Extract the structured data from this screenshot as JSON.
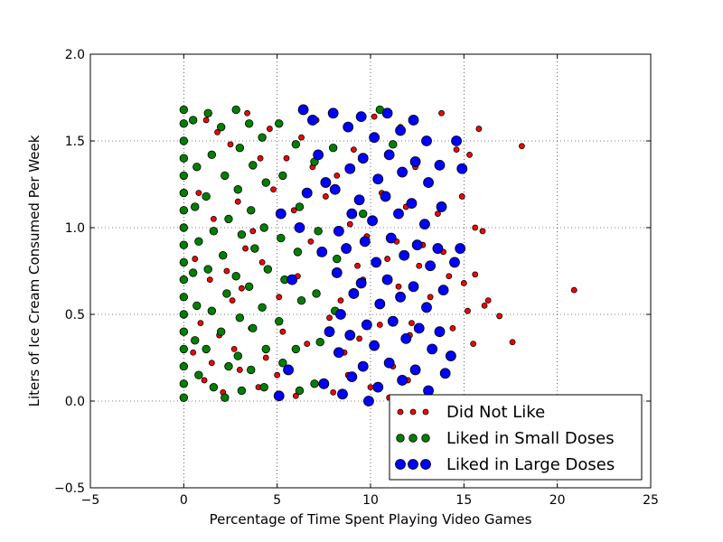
{
  "chart_data": {
    "type": "scatter",
    "title": "",
    "xlabel": "Percentage of Time Spent Playing Video Games",
    "ylabel": "Liters of Ice Cream Consumed Per Week",
    "xlim": [
      -5,
      25
    ],
    "ylim": [
      -0.5,
      2.0
    ],
    "x_ticks": [
      "−5",
      "0",
      "5",
      "10",
      "15",
      "20",
      "25"
    ],
    "y_ticks": [
      "−0.5",
      "0.0",
      "0.5",
      "1.0",
      "1.5",
      "2.0"
    ],
    "grid": true,
    "legend_position": "bottom-right",
    "series": [
      {
        "name": "Did Not Like",
        "color": "#ff0000",
        "marker_size": "small",
        "points": [
          [
            1.2,
            1.62
          ],
          [
            1.8,
            1.55
          ],
          [
            2.5,
            1.48
          ],
          [
            3.4,
            1.66
          ],
          [
            4.6,
            1.57
          ],
          [
            5.5,
            1.4
          ],
          [
            6.3,
            1.52
          ],
          [
            7.1,
            1.62
          ],
          [
            8.2,
            1.3
          ],
          [
            9.1,
            1.45
          ],
          [
            10.2,
            1.64
          ],
          [
            11.6,
            1.58
          ],
          [
            12.4,
            1.35
          ],
          [
            13.8,
            1.66
          ],
          [
            14.6,
            1.45
          ],
          [
            15.3,
            1.42
          ],
          [
            15.8,
            1.57
          ],
          [
            18.1,
            1.47
          ],
          [
            0.8,
            1.2
          ],
          [
            1.6,
            1.05
          ],
          [
            2.9,
            1.15
          ],
          [
            3.7,
            0.98
          ],
          [
            4.8,
            1.22
          ],
          [
            5.9,
            1.1
          ],
          [
            6.8,
            0.92
          ],
          [
            7.6,
            1.18
          ],
          [
            8.9,
            1.02
          ],
          [
            9.8,
            0.95
          ],
          [
            10.6,
            1.2
          ],
          [
            11.9,
            1.12
          ],
          [
            12.8,
            0.9
          ],
          [
            13.6,
            1.08
          ],
          [
            14.9,
            1.18
          ],
          [
            15.6,
            1.0
          ],
          [
            16.0,
            0.98
          ],
          [
            0.6,
            0.82
          ],
          [
            1.4,
            0.7
          ],
          [
            2.3,
            0.75
          ],
          [
            3.1,
            0.65
          ],
          [
            4.2,
            0.8
          ],
          [
            5.1,
            0.6
          ],
          [
            6.1,
            0.72
          ],
          [
            7.3,
            0.85
          ],
          [
            8.4,
            0.58
          ],
          [
            9.6,
            0.7
          ],
          [
            10.9,
            0.82
          ],
          [
            11.5,
            0.66
          ],
          [
            12.6,
            0.78
          ],
          [
            13.2,
            0.6
          ],
          [
            14.2,
            0.72
          ],
          [
            15.0,
            0.68
          ],
          [
            15.6,
            0.73
          ],
          [
            16.3,
            0.58
          ],
          [
            16.1,
            0.55
          ],
          [
            20.9,
            0.64
          ],
          [
            0.9,
            0.45
          ],
          [
            1.9,
            0.38
          ],
          [
            2.7,
            0.3
          ],
          [
            3.6,
            0.42
          ],
          [
            4.4,
            0.25
          ],
          [
            5.3,
            0.4
          ],
          [
            6.6,
            0.33
          ],
          [
            7.8,
            0.48
          ],
          [
            8.6,
            0.28
          ],
          [
            9.4,
            0.36
          ],
          [
            10.5,
            0.44
          ],
          [
            11.2,
            0.2
          ],
          [
            12.1,
            0.38
          ],
          [
            13.4,
            0.3
          ],
          [
            14.4,
            0.42
          ],
          [
            15.2,
            0.52
          ],
          [
            16.9,
            0.49
          ],
          [
            15.5,
            0.33
          ],
          [
            17.6,
            0.34
          ],
          [
            1.1,
            0.12
          ],
          [
            2.1,
            0.05
          ],
          [
            3.0,
            0.18
          ],
          [
            4.0,
            0.08
          ],
          [
            5.0,
            0.15
          ],
          [
            6.0,
            0.03
          ],
          [
            7.0,
            0.1
          ],
          [
            8.0,
            0.05
          ],
          [
            9.0,
            0.14
          ],
          [
            10.0,
            0.08
          ],
          [
            11.0,
            0.02
          ],
          [
            12.0,
            0.12
          ],
          [
            13.0,
            0.06
          ],
          [
            14.0,
            0.15
          ],
          [
            0.5,
            0.28
          ],
          [
            1.5,
            0.22
          ],
          [
            2.6,
            0.58
          ],
          [
            3.3,
            0.88
          ],
          [
            4.1,
            1.4
          ],
          [
            6.9,
            1.35
          ],
          [
            8.8,
            0.15
          ],
          [
            11.4,
            0.92
          ],
          [
            13.9,
            0.86
          ],
          [
            12.2,
            0.45
          ],
          [
            9.3,
            0.78
          ]
        ]
      },
      {
        "name": "Liked in Small Doses",
        "color": "#008000",
        "marker_size": "medium",
        "points": [
          [
            0.0,
            1.68
          ],
          [
            0.0,
            1.6
          ],
          [
            0.0,
            1.5
          ],
          [
            0.0,
            1.4
          ],
          [
            0.0,
            1.3
          ],
          [
            0.0,
            1.2
          ],
          [
            0.0,
            1.1
          ],
          [
            0.0,
            1.0
          ],
          [
            0.0,
            0.9
          ],
          [
            0.0,
            0.8
          ],
          [
            0.0,
            0.7
          ],
          [
            0.0,
            0.6
          ],
          [
            0.0,
            0.5
          ],
          [
            0.0,
            0.4
          ],
          [
            0.0,
            0.3
          ],
          [
            0.0,
            0.2
          ],
          [
            0.0,
            0.1
          ],
          [
            0.0,
            0.02
          ],
          [
            0.5,
            1.62
          ],
          [
            0.7,
            1.35
          ],
          [
            0.6,
            1.12
          ],
          [
            0.8,
            0.92
          ],
          [
            0.5,
            0.74
          ],
          [
            0.7,
            0.55
          ],
          [
            0.6,
            0.35
          ],
          [
            0.8,
            0.15
          ],
          [
            1.3,
            1.66
          ],
          [
            1.5,
            1.42
          ],
          [
            1.2,
            1.18
          ],
          [
            1.6,
            0.98
          ],
          [
            1.3,
            0.76
          ],
          [
            1.5,
            0.52
          ],
          [
            1.2,
            0.3
          ],
          [
            1.6,
            0.08
          ],
          [
            2.0,
            1.58
          ],
          [
            2.2,
            1.3
          ],
          [
            2.4,
            1.05
          ],
          [
            2.1,
            0.84
          ],
          [
            2.3,
            0.62
          ],
          [
            2.0,
            0.4
          ],
          [
            2.4,
            0.2
          ],
          [
            2.2,
            0.02
          ],
          [
            2.8,
            1.68
          ],
          [
            3.0,
            1.46
          ],
          [
            2.9,
            1.22
          ],
          [
            3.1,
            0.96
          ],
          [
            2.8,
            0.72
          ],
          [
            3.0,
            0.48
          ],
          [
            2.9,
            0.26
          ],
          [
            3.1,
            0.06
          ],
          [
            3.5,
            1.6
          ],
          [
            3.7,
            1.36
          ],
          [
            3.6,
            1.1
          ],
          [
            3.8,
            0.88
          ],
          [
            3.5,
            0.66
          ],
          [
            3.7,
            0.42
          ],
          [
            3.6,
            0.18
          ],
          [
            4.2,
            1.52
          ],
          [
            4.4,
            1.26
          ],
          [
            4.3,
            1.0
          ],
          [
            4.5,
            0.76
          ],
          [
            4.2,
            0.54
          ],
          [
            4.4,
            0.3
          ],
          [
            4.3,
            0.08
          ],
          [
            5.1,
            1.6
          ],
          [
            5.3,
            1.3
          ],
          [
            5.2,
            0.94
          ],
          [
            5.4,
            0.7
          ],
          [
            5.1,
            0.46
          ],
          [
            5.3,
            0.22
          ],
          [
            6.0,
            1.48
          ],
          [
            6.2,
            1.12
          ],
          [
            6.1,
            0.86
          ],
          [
            6.3,
            0.58
          ],
          [
            6.0,
            0.3
          ],
          [
            6.2,
            0.06
          ],
          [
            7.0,
            1.38
          ],
          [
            7.2,
            0.98
          ],
          [
            7.1,
            0.62
          ],
          [
            7.3,
            0.34
          ],
          [
            7.0,
            0.1
          ],
          [
            8.0,
            1.46
          ],
          [
            8.2,
            0.82
          ],
          [
            8.1,
            0.52
          ],
          [
            9.6,
            1.08
          ],
          [
            10.5,
            1.68
          ],
          [
            11.2,
            1.48
          ]
        ]
      },
      {
        "name": "Liked in Large Doses",
        "color": "#0000ff",
        "marker_size": "large",
        "points": [
          [
            5.2,
            1.08
          ],
          [
            5.8,
            0.7
          ],
          [
            6.2,
            1.0
          ],
          [
            6.4,
            1.68
          ],
          [
            6.6,
            1.2
          ],
          [
            5.6,
            0.18
          ],
          [
            5.1,
            0.03
          ],
          [
            6.9,
            1.62
          ],
          [
            7.2,
            1.42
          ],
          [
            7.4,
            0.86
          ],
          [
            7.6,
            1.26
          ],
          [
            7.8,
            0.4
          ],
          [
            7.5,
            0.1
          ],
          [
            8.0,
            1.66
          ],
          [
            8.1,
            1.22
          ],
          [
            8.3,
            0.98
          ],
          [
            8.2,
            0.74
          ],
          [
            8.4,
            0.5
          ],
          [
            8.3,
            0.28
          ],
          [
            8.5,
            0.04
          ],
          [
            8.8,
            1.58
          ],
          [
            8.9,
            1.34
          ],
          [
            9.0,
            1.08
          ],
          [
            8.7,
            0.88
          ],
          [
            9.1,
            0.62
          ],
          [
            8.9,
            0.38
          ],
          [
            9.0,
            0.14
          ],
          [
            9.5,
            1.64
          ],
          [
            9.6,
            1.4
          ],
          [
            9.4,
            1.16
          ],
          [
            9.7,
            0.92
          ],
          [
            9.5,
            0.68
          ],
          [
            9.8,
            0.44
          ],
          [
            9.6,
            0.2
          ],
          [
            9.9,
            0.0
          ],
          [
            10.2,
            1.52
          ],
          [
            10.4,
            1.28
          ],
          [
            10.1,
            1.04
          ],
          [
            10.3,
            0.8
          ],
          [
            10.5,
            0.56
          ],
          [
            10.2,
            0.32
          ],
          [
            10.4,
            0.08
          ],
          [
            10.9,
            1.66
          ],
          [
            11.0,
            1.42
          ],
          [
            10.8,
            1.18
          ],
          [
            11.1,
            0.94
          ],
          [
            10.9,
            0.7
          ],
          [
            11.2,
            0.46
          ],
          [
            11.0,
            0.22
          ],
          [
            11.6,
            1.56
          ],
          [
            11.7,
            1.32
          ],
          [
            11.5,
            1.08
          ],
          [
            11.8,
            0.84
          ],
          [
            11.6,
            0.6
          ],
          [
            11.9,
            0.36
          ],
          [
            11.7,
            0.12
          ],
          [
            12.3,
            1.62
          ],
          [
            12.4,
            1.38
          ],
          [
            12.2,
            1.14
          ],
          [
            12.5,
            0.9
          ],
          [
            12.3,
            0.66
          ],
          [
            12.6,
            0.42
          ],
          [
            12.4,
            0.18
          ],
          [
            13.0,
            1.5
          ],
          [
            13.1,
            1.26
          ],
          [
            12.9,
            1.02
          ],
          [
            13.2,
            0.78
          ],
          [
            13.0,
            0.54
          ],
          [
            13.3,
            0.3
          ],
          [
            13.1,
            0.06
          ],
          [
            13.7,
            1.36
          ],
          [
            13.8,
            1.12
          ],
          [
            13.6,
            0.88
          ],
          [
            13.9,
            0.64
          ],
          [
            13.7,
            0.4
          ],
          [
            14.0,
            0.16
          ],
          [
            14.6,
            1.5
          ],
          [
            14.5,
            0.8
          ],
          [
            14.8,
            0.88
          ],
          [
            14.3,
            0.26
          ],
          [
            14.9,
            1.34
          ]
        ]
      }
    ]
  }
}
